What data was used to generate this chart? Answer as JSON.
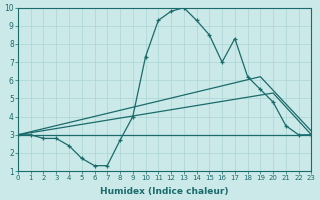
{
  "xlabel": "Humidex (Indice chaleur)",
  "xlim": [
    0,
    23
  ],
  "ylim": [
    1,
    10
  ],
  "yticks": [
    1,
    2,
    3,
    4,
    5,
    6,
    7,
    8,
    9,
    10
  ],
  "xticks": [
    0,
    1,
    2,
    3,
    4,
    5,
    6,
    7,
    8,
    9,
    10,
    11,
    12,
    13,
    14,
    15,
    16,
    17,
    18,
    19,
    20,
    21,
    22,
    23
  ],
  "background_color": "#cce9e9",
  "line_color": "#1a6b6b",
  "grid_color": "#aad4d4",
  "lines": [
    {
      "x": [
        0,
        1,
        2,
        3,
        4,
        5,
        6,
        7,
        8,
        9,
        10,
        11,
        12,
        13,
        14,
        15,
        16,
        17,
        18,
        19,
        20,
        21,
        22,
        23
      ],
      "y": [
        3,
        3,
        2.8,
        2.8,
        2.4,
        1.7,
        1.3,
        1.3,
        2.7,
        4.0,
        7.3,
        9.3,
        9.8,
        10,
        9.3,
        8.5,
        7.0,
        8.3,
        6.2,
        5.5,
        4.8,
        3.5,
        3.0,
        3.0
      ],
      "marker": true
    },
    {
      "x": [
        0,
        23
      ],
      "y": [
        3,
        3
      ],
      "marker": false
    },
    {
      "x": [
        0,
        19,
        23
      ],
      "y": [
        3,
        6.2,
        3.2
      ],
      "marker": false
    },
    {
      "x": [
        0,
        20,
        23
      ],
      "y": [
        3,
        5.3,
        3.0
      ],
      "marker": false
    }
  ]
}
